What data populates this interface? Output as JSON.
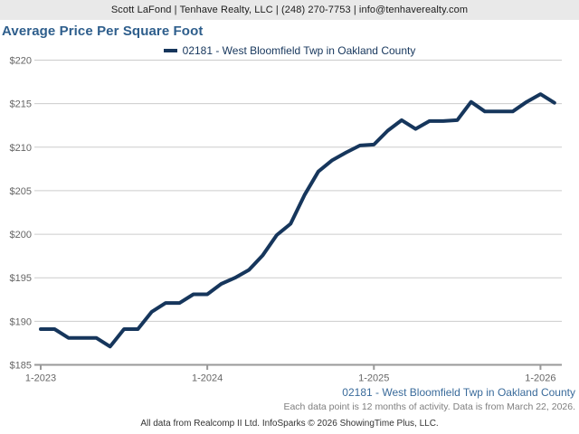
{
  "header": {
    "contact_line": "Scott LaFond | Tenhave Realty, LLC | (248) 270-7753 | info@tenhaverealty.com"
  },
  "title": "Average Price Per Square Foot",
  "legend": {
    "series_label": "02181 - West Bloomfield Twp in Oakland County"
  },
  "chart_data": {
    "type": "line",
    "title": "Average Price Per Square Foot",
    "x": [
      "1-2023",
      "2-2023",
      "3-2023",
      "4-2023",
      "5-2023",
      "6-2023",
      "7-2023",
      "8-2023",
      "9-2023",
      "10-2023",
      "11-2023",
      "12-2023",
      "1-2024",
      "2-2024",
      "3-2024",
      "4-2024",
      "5-2024",
      "6-2024",
      "7-2024",
      "8-2024",
      "9-2024",
      "10-2024",
      "11-2024",
      "12-2024",
      "1-2025",
      "2-2025",
      "3-2025",
      "4-2025",
      "5-2025",
      "6-2025",
      "7-2025",
      "8-2025",
      "9-2025",
      "10-2025",
      "11-2025",
      "12-2025",
      "1-2026",
      "2-2026"
    ],
    "series": [
      {
        "name": "02181 - West Bloomfield Twp in Oakland County",
        "color": "#16365c",
        "values": [
          189.1,
          189.1,
          188.1,
          188.1,
          188.1,
          187.1,
          189.1,
          189.1,
          191.1,
          192.1,
          192.1,
          193.1,
          193.1,
          194.3,
          195.0,
          195.9,
          197.6,
          199.9,
          201.2,
          204.5,
          207.2,
          208.5,
          209.4,
          210.2,
          210.3,
          211.9,
          213.1,
          212.1,
          213.0,
          213.0,
          213.1,
          215.2,
          214.1,
          214.1,
          214.1,
          215.2,
          216.1,
          215.1
        ]
      }
    ],
    "ylim": [
      185,
      220
    ],
    "y_ticks": [
      185,
      190,
      195,
      200,
      205,
      210,
      215,
      220
    ],
    "y_tick_labels": [
      "$185",
      "$190",
      "$195",
      "$200",
      "$205",
      "$210",
      "$215",
      "$220"
    ],
    "x_tick_indices": [
      0,
      12,
      24,
      36
    ],
    "x_tick_labels": [
      "1-2023",
      "1-2024",
      "1-2025",
      "1-2026"
    ],
    "xlabel": "",
    "ylabel": "",
    "grid": "horizontal",
    "legend_position": "top-center",
    "gridline_color": "#cccccc",
    "axis_color": "#999999",
    "axis_text_color": "#666666"
  },
  "footer": {
    "series_note": "02181 - West Bloomfield Twp in Oakland County",
    "data_note": "Each data point is 12 months of activity. Data is from March 22, 2026.",
    "copyright": "All data from Realcomp II Ltd. InfoSparks © 2026 ShowingTime Plus, LLC."
  },
  "colors": {
    "header_bg": "#e9e9e9",
    "title_blue": "#2e5e8c",
    "line_navy": "#16365c",
    "footer_blue": "#3a6b9b",
    "note_gray": "#7f7f7f"
  }
}
